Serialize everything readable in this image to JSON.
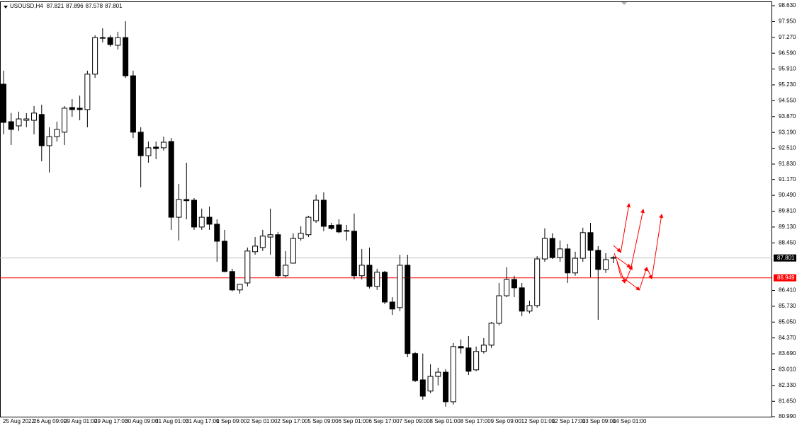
{
  "chart_data": {
    "type": "candlestick",
    "title": "USOUSD,H4",
    "categories": [
      "25 Aug 2022",
      null,
      null,
      null,
      "26 Aug 09:00",
      null,
      null,
      null,
      "29 Aug 01:00",
      null,
      null,
      null,
      "29 Aug 17:00",
      null,
      null,
      null,
      "30 Aug 09:00",
      null,
      null,
      null,
      "31 Aug 01:00",
      null,
      null,
      null,
      "31 Aug 17:00",
      null,
      null,
      null,
      "1 Sep 09:00",
      null,
      null,
      null,
      "2 Sep 01:00",
      null,
      null,
      null,
      "2 Sep 17:00",
      null,
      null,
      null,
      "5 Sep 09:00",
      null,
      null,
      null,
      "6 Sep 01:00",
      null,
      null,
      null,
      "6 Sep 17:00",
      null,
      null,
      null,
      "7 Sep 09:00",
      null,
      null,
      null,
      "8 Sep 01:00",
      null,
      null,
      null,
      "8 Sep 17:00",
      null,
      null,
      null,
      "9 Sep 09:00",
      null,
      null,
      null,
      "12 Sep 01:00",
      null,
      null,
      null,
      "12 Sep 17:00",
      null,
      null,
      null,
      "13 Sep 09:00",
      null,
      null,
      null,
      "14 Sep 01:00"
    ],
    "candles": {
      "open": [
        95.26,
        93.65,
        93.47,
        93.71,
        93.71,
        93.96,
        92.62,
        93.01,
        93.2,
        94.26,
        94.23,
        94.17,
        95.69,
        97.23,
        97.26,
        96.93,
        97.26,
        95.62,
        93.2,
        92.19,
        92.56,
        92.53,
        92.8,
        89.55,
        90.31,
        90.28,
        89.13,
        89.55,
        89.25,
        88.52,
        87.22,
        86.43,
        86.73,
        88.07,
        88.25,
        88.7,
        88.8,
        87.04,
        87.58,
        88.64,
        88.8,
        89.4,
        90.28,
        89.2,
        89.22,
        88.95,
        88.95,
        87.04,
        87.49,
        86.58,
        87.19,
        85.91,
        85.67,
        87.49,
        83.7,
        82.57,
        82.09,
        82.72,
        82.9,
        81.63,
        84.0,
        83.94,
        83.0,
        83.79,
        84.06,
        85.0,
        86.18,
        86.88,
        86.52,
        85.52,
        85.76,
        87.76,
        88.64,
        87.82,
        88.19,
        87.16,
        87.79,
        88.89,
        88.13,
        87.31,
        87.821
      ],
      "high": [
        95.84,
        94.02,
        94.08,
        94.02,
        94.32,
        94.38,
        93.41,
        93.65,
        94.32,
        94.62,
        94.77,
        95.84,
        97.36,
        97.66,
        97.36,
        97.51,
        97.96,
        95.84,
        93.41,
        92.8,
        92.8,
        93.01,
        92.95,
        90.98,
        91.89,
        90.37,
        89.92,
        90.01,
        89.46,
        89.01,
        87.34,
        86.67,
        88.25,
        88.7,
        89.01,
        89.92,
        88.92,
        88.1,
        88.86,
        89.16,
        89.61,
        90.52,
        90.62,
        89.31,
        89.46,
        89.22,
        89.71,
        88.19,
        88.25,
        87.34,
        87.25,
        86.12,
        87.94,
        87.94,
        83.76,
        83.7,
        83.24,
        83.09,
        83.03,
        84.15,
        84.3,
        84.45,
        84.0,
        84.36,
        85.06,
        86.73,
        87.4,
        87.04,
        86.73,
        85.97,
        87.88,
        89.07,
        88.86,
        88.55,
        88.4,
        88.07,
        89.1,
        89.31,
        88.31,
        88.01,
        87.896
      ],
      "low": [
        93.11,
        92.65,
        93.26,
        93.41,
        93.11,
        91.95,
        91.47,
        92.8,
        92.65,
        93.86,
        93.71,
        93.41,
        95.53,
        97.05,
        96.87,
        96.75,
        95.53,
        92.95,
        90.83,
        91.89,
        92.04,
        92.41,
        89.01,
        88.55,
        89.46,
        89.01,
        89.01,
        89.01,
        87.64,
        87.19,
        86.37,
        86.27,
        86.58,
        87.94,
        88.1,
        87.94,
        86.97,
        86.97,
        87.58,
        88.55,
        88.7,
        89.31,
        88.95,
        89.01,
        88.86,
        88.55,
        86.88,
        86.88,
        86.49,
        86.43,
        85.82,
        85.36,
        85.52,
        83.54,
        82.48,
        81.72,
        82.0,
        82.33,
        81.42,
        81.51,
        83.7,
        82.78,
        82.94,
        83.7,
        83.94,
        84.91,
        86.12,
        86.12,
        85.3,
        85.42,
        85.67,
        87.64,
        87.76,
        87.64,
        86.73,
        87.04,
        87.64,
        86.97,
        85.15,
        87.16,
        87.578
      ],
      "close": [
        93.62,
        93.32,
        93.77,
        93.77,
        94.02,
        92.62,
        93.01,
        93.32,
        94.23,
        94.17,
        94.17,
        95.69,
        97.26,
        97.26,
        96.96,
        97.26,
        95.62,
        93.2,
        92.19,
        92.53,
        92.5,
        92.77,
        89.55,
        90.31,
        90.26,
        89.13,
        89.55,
        89.25,
        88.52,
        87.22,
        86.43,
        86.67,
        88.1,
        88.31,
        88.74,
        88.8,
        87.04,
        87.49,
        88.64,
        88.86,
        89.55,
        90.28,
        89.16,
        89.07,
        88.92,
        88.98,
        87.04,
        87.49,
        86.58,
        87.19,
        85.91,
        85.61,
        87.49,
        83.7,
        82.54,
        81.87,
        82.72,
        82.9,
        81.63,
        84.0,
        83.94,
        82.94,
        83.79,
        84.06,
        85.0,
        86.18,
        86.88,
        86.52,
        85.52,
        85.76,
        87.76,
        88.64,
        87.82,
        88.19,
        87.16,
        87.79,
        88.89,
        88.13,
        87.31,
        87.73,
        87.801
      ]
    },
    "up_color": "#ffffff",
    "down_color": "#000000",
    "price_line_color": "#c0c0c0",
    "level_line": {
      "value": 86.949,
      "color": "#ff0000"
    },
    "ylim": [
      80.99,
      98.63
    ],
    "yticks": [
      {
        "value": 98.63,
        "label": "98.630"
      },
      {
        "value": 97.95,
        "label": "97.950"
      },
      {
        "value": 97.27,
        "label": "97.270"
      },
      {
        "value": 96.59,
        "label": "96.590"
      },
      {
        "value": 95.91,
        "label": "95.910"
      },
      {
        "value": 95.23,
        "label": "95.230"
      },
      {
        "value": 94.55,
        "label": "94.550"
      },
      {
        "value": 93.87,
        "label": "93.870"
      },
      {
        "value": 93.19,
        "label": "93.190"
      },
      {
        "value": 92.51,
        "label": "92.510"
      },
      {
        "value": 91.83,
        "label": "91.830"
      },
      {
        "value": 91.17,
        "label": "91.170"
      },
      {
        "value": 90.49,
        "label": "90.490"
      },
      {
        "value": 89.81,
        "label": "89.810"
      },
      {
        "value": 89.13,
        "label": "89.130"
      },
      {
        "value": 88.45,
        "label": "88.450"
      },
      {
        "value": 86.41,
        "label": "86.410"
      },
      {
        "value": 85.73,
        "label": "85.730"
      },
      {
        "value": 85.05,
        "label": "85.050"
      },
      {
        "value": 84.37,
        "label": "84.370"
      },
      {
        "value": 83.69,
        "label": "83.690"
      },
      {
        "value": 83.01,
        "label": "83.010"
      },
      {
        "value": 82.33,
        "label": "82.330"
      },
      {
        "value": 81.65,
        "label": "81.650"
      },
      {
        "value": 80.99,
        "label": "80.990"
      }
    ],
    "grid": false
  }
}
